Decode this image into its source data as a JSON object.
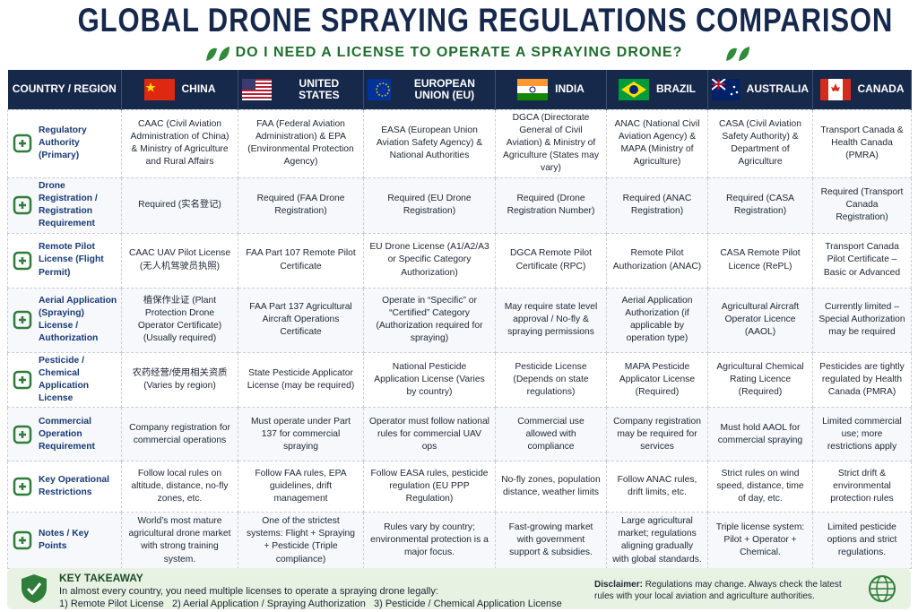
{
  "header": {
    "title": "GLOBAL DRONE SPRAYING REGULATIONS COMPARISON",
    "subtitle": "DO I NEED A LICENSE TO OPERATE A SPRAYING DRONE?"
  },
  "table": {
    "columns": [
      "COUNTRY / REGION",
      "CHINA",
      "UNITED STATES",
      "EUROPEAN UNION (EU)",
      "INDIA",
      "BRAZIL",
      "AUSTRALIA",
      "CANADA"
    ],
    "rows": [
      [
        "Regulatory Authority (Primary)",
        "CAAC (Civil Aviation Administration of China) & Ministry of Agriculture and Rural Affairs",
        "FAA (Federal Aviation Administration) & EPA (Environmental Protection Agency)",
        "EASA (European Union Aviation Safety Agency) & National Authorities",
        "DGCA (Directorate General of Civil Aviation) & Ministry of Agriculture (States may vary)",
        "ANAC (National Civil Aviation Agency) & MAPA (Ministry of Agriculture)",
        "CASA (Civil Aviation Safety Authority) & Department of Agriculture",
        "Transport Canada & Health Canada (PMRA)"
      ],
      [
        "Drone Registration / Registration Requirement",
        "Required (实名登记)",
        "Required (FAA Drone Registration)",
        "Required (EU Drone Registration)",
        "Required (Drone Registration Number)",
        "Required (ANAC Registration)",
        "Required (CASA Registration)",
        "Required (Transport Canada Registration)"
      ],
      [
        "Remote Pilot License (Flight Permit)",
        "CAAC UAV Pilot License (无人机驾驶员执照)",
        "FAA Part 107 Remote Pilot Certificate",
        "EU Drone License (A1/A2/A3 or Specific Category Authorization)",
        "DGCA Remote Pilot Certificate (RPC)",
        "Remote Pilot Authorization (ANAC)",
        "CASA Remote Pilot Licence (RePL)",
        "Transport Canada Pilot Certificate – Basic or Advanced"
      ],
      [
        "Aerial Application (Spraying) License / Authorization",
        "植保作业证 (Plant Protection Drone Operator Certificate) (Usually required)",
        "FAA Part 137 Agricultural Aircraft Operations Certificate",
        "Operate in “Specific” or “Certified” Category (Authorization required for spraying)",
        "May require state level approval / No-fly & spraying permissions",
        "Aerial Application Authorization (if applicable by operation type)",
        "Agricultural Aircraft Operator Licence (AAOL)",
        "Currently limited – Special Authorization may be required"
      ],
      [
        "Pesticide / Chemical Application License",
        "农药经营/使用相关资质 (Varies by region)",
        "State Pesticide Applicator License (may be required)",
        "National Pesticide Application License (Varies by country)",
        "Pesticide License (Depends on state regulations)",
        "MAPA Pesticide Applicator License (Required)",
        "Agricultural Chemical Rating Licence (Required)",
        "Pesticides are tightly regulated by Health Canada (PMRA)"
      ],
      [
        "Commercial Operation Requirement",
        "Company registration for commercial operations",
        "Must operate under Part 137 for commercial spraying",
        "Operator must follow national rules for commercial UAV ops",
        "Commercial use allowed with compliance",
        "Company registration may be required for services",
        "Must hold AAOL for commercial spraying",
        "Limited commercial use; more restrictions apply"
      ],
      [
        "Key Operational Restrictions",
        "Follow local rules on altitude, distance, no-fly zones, etc.",
        "Follow FAA rules, EPA guidelines, drift management",
        "Follow EASA rules, pesticide regulation (EU PPP Regulation)",
        "No-fly zones, population distance, weather limits",
        "Follow ANAC rules, drift limits, etc.",
        "Strict rules on wind speed, distance, time of day, etc.",
        "Strict drift & environmental protection rules"
      ],
      [
        "Notes / Key Points",
        "World’s most mature agricultural drone market with strong training system.",
        "One of the strictest systems: Flight + Spraying + Pesticide (Triple compliance)",
        "Rules vary by country; environmental protection is a major focus.",
        "Fast-growing market with government support & subsidies.",
        "Large agricultural market; regulations aligning gradually with global standards.",
        "Triple license system: Pilot + Operator + Chemical.",
        "Limited pesticide options and strict regulations."
      ]
    ]
  },
  "footer": {
    "takeaway_title": "KEY TAKEAWAY",
    "takeaway_text": "In almost every country, you need multiple licenses to operate a spraying drone legally:",
    "items": [
      "1) Remote Pilot License",
      "2) Aerial Application / Spraying Authorization",
      "3) Pesticide / Chemical Application License"
    ],
    "disclaimer_label": "Disclaimer:",
    "disclaimer_text": "Regulations may change. Always check the latest rules with your local aviation and agriculture authorities."
  }
}
